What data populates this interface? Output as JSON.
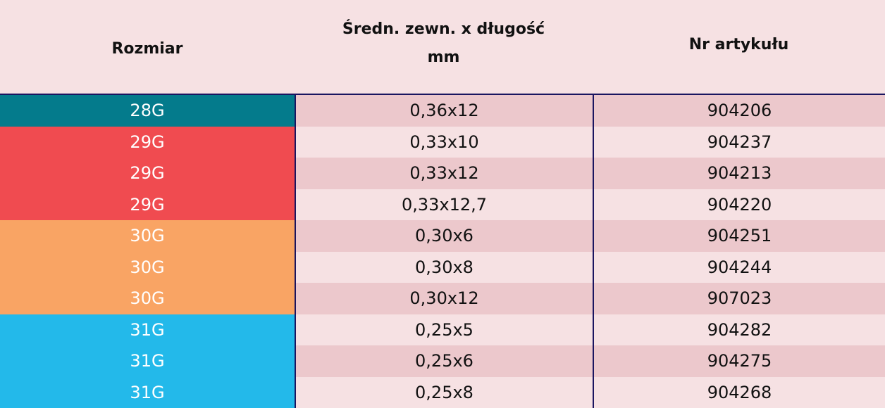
{
  "table": {
    "headers": {
      "size": "Rozmiar",
      "dim_line1": "Średn. zewn. x długość",
      "dim_line2": "mm",
      "article": "Nr artykułu"
    },
    "colors": {
      "28G": "#047b8c",
      "29G": "#f04b50",
      "30G": "#f9a464",
      "31G": "#23b9ea",
      "row_dark": "#ecc8cc",
      "row_light": "#f6e1e3",
      "rule": "#1a1560"
    },
    "rows": [
      {
        "size": "28G",
        "dim": "0,36x12",
        "article": "904206"
      },
      {
        "size": "29G",
        "dim": "0,33x10",
        "article": "904237"
      },
      {
        "size": "29G",
        "dim": "0,33x12",
        "article": "904213"
      },
      {
        "size": "29G",
        "dim": "0,33x12,7",
        "article": "904220"
      },
      {
        "size": "30G",
        "dim": "0,30x6",
        "article": "904251"
      },
      {
        "size": "30G",
        "dim": "0,30x8",
        "article": "904244"
      },
      {
        "size": "30G",
        "dim": "0,30x12",
        "article": "907023"
      },
      {
        "size": "31G",
        "dim": "0,25x5",
        "article": "904282"
      },
      {
        "size": "31G",
        "dim": "0,25x6",
        "article": "904275"
      },
      {
        "size": "31G",
        "dim": "0,25x8",
        "article": "904268"
      }
    ]
  }
}
